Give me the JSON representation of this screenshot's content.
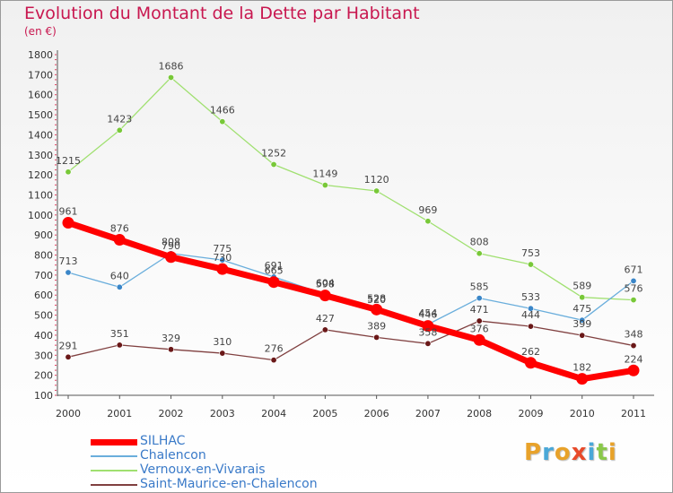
{
  "title": "Evolution du Montant de la Dette par Habitant",
  "unit_label": "(en €)",
  "logo": {
    "text": "Proxiti",
    "letters": [
      {
        "ch": "P",
        "color": "#e8a22a"
      },
      {
        "ch": "r",
        "color": "#4aa8d8"
      },
      {
        "ch": "o",
        "color": "#e8a22a"
      },
      {
        "ch": "x",
        "color": "#e84a2a"
      },
      {
        "ch": "i",
        "color": "#4aa8d8"
      },
      {
        "ch": "t",
        "color": "#8ac84a"
      },
      {
        "ch": "i",
        "color": "#e8a22a"
      }
    ]
  },
  "chart_data": {
    "type": "line",
    "title": "Evolution du Montant de la Dette par Habitant",
    "ylabel": "(en €)",
    "xlabel": "",
    "x": [
      "2000",
      "2001",
      "2002",
      "2003",
      "2004",
      "2005",
      "2006",
      "2007",
      "2008",
      "2009",
      "2010",
      "2011"
    ],
    "ylim": [
      100,
      1800
    ],
    "yticks": [
      "100",
      "200",
      "300",
      "400",
      "500",
      "600",
      "700",
      "800",
      "900",
      "1000",
      "1100",
      "1200",
      "1300",
      "1400",
      "1500",
      "1600",
      "1700",
      "1800"
    ],
    "grid": false,
    "legend_position": "bottom-left",
    "series": [
      {
        "name": "SILHAC",
        "color": "#ff0000",
        "point_color": "#ff0000",
        "values": [
          961,
          876,
          790,
          730,
          665,
          598,
          528,
          446,
          376,
          262,
          182,
          224
        ]
      },
      {
        "name": "Chalencon",
        "color": "#6aaedc",
        "point_color": "#3a86c8",
        "values": [
          713,
          640,
          808,
          775,
          691,
          604,
          520,
          454,
          585,
          533,
          475,
          671
        ]
      },
      {
        "name": "Vernoux-en-Vivarais",
        "color": "#a0e070",
        "point_color": "#78c838",
        "values": [
          1215,
          1423,
          1686,
          1466,
          1252,
          1149,
          1120,
          969,
          808,
          753,
          589,
          576
        ]
      },
      {
        "name": "Saint-Maurice-en-Chalencon",
        "color": "#804040",
        "point_color": "#6a1818",
        "values": [
          291,
          351,
          329,
          310,
          276,
          427,
          389,
          358,
          471,
          444,
          399,
          348
        ]
      }
    ]
  }
}
